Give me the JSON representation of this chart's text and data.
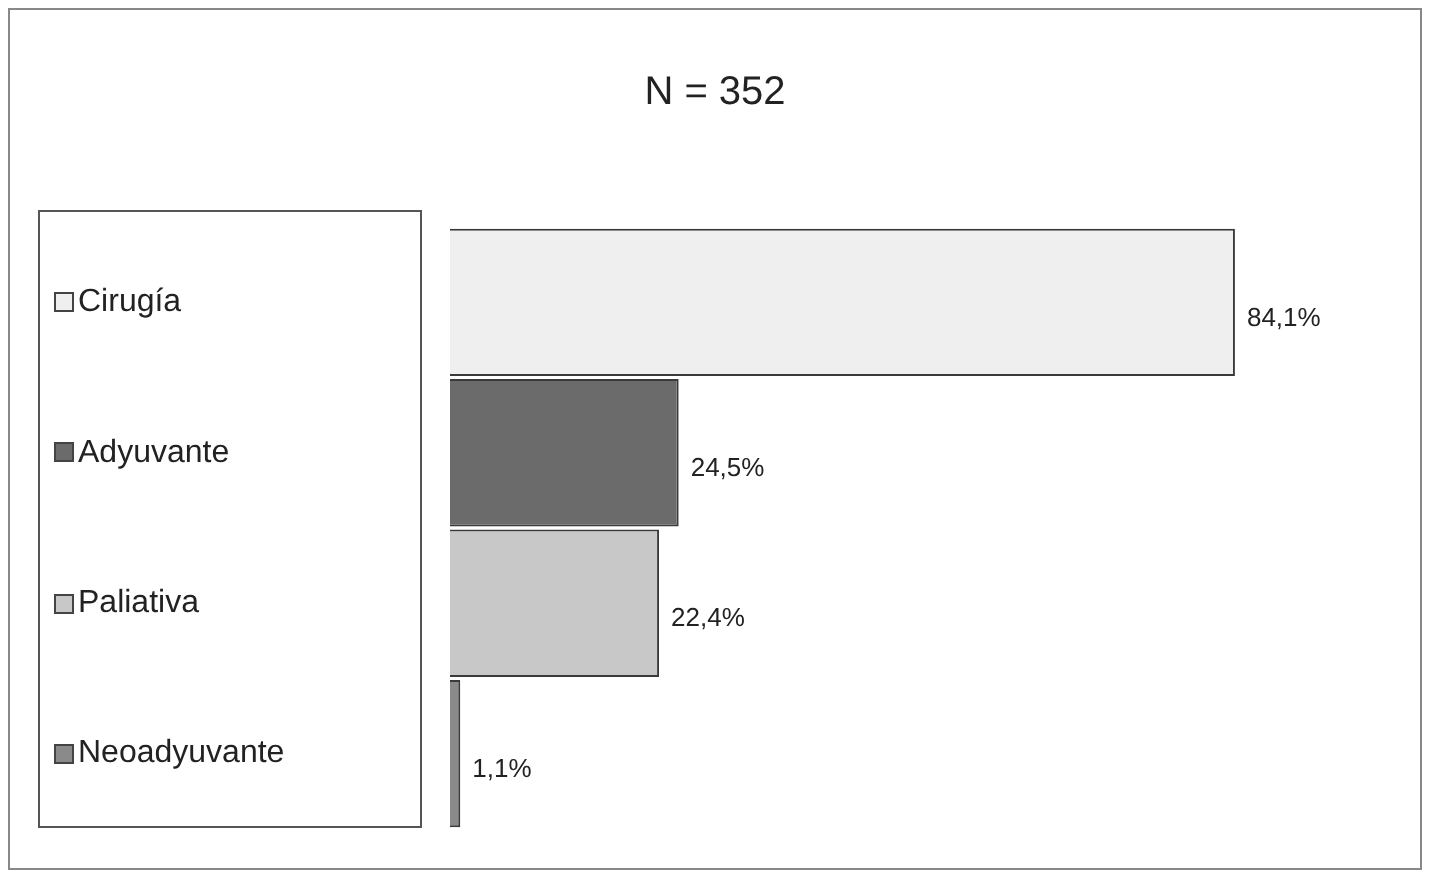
{
  "chart_data": {
    "type": "bar",
    "title": "N = 352",
    "orientation": "horizontal",
    "tick_labels": "y",
    "grid": false,
    "categories": [
      "Cirugía",
      "Adyuvante",
      "Paliativa",
      "Neoadyuvante"
    ],
    "values": [
      84.1,
      24.5,
      22.4,
      1.1
    ],
    "colors": [
      "#efefef",
      "#6b6b6b",
      "#c8c8c8",
      "#8a8a8a"
    ],
    "value_labels": [
      "84,1%",
      "24,5%",
      "22,4%",
      "1,1%"
    ]
  }
}
